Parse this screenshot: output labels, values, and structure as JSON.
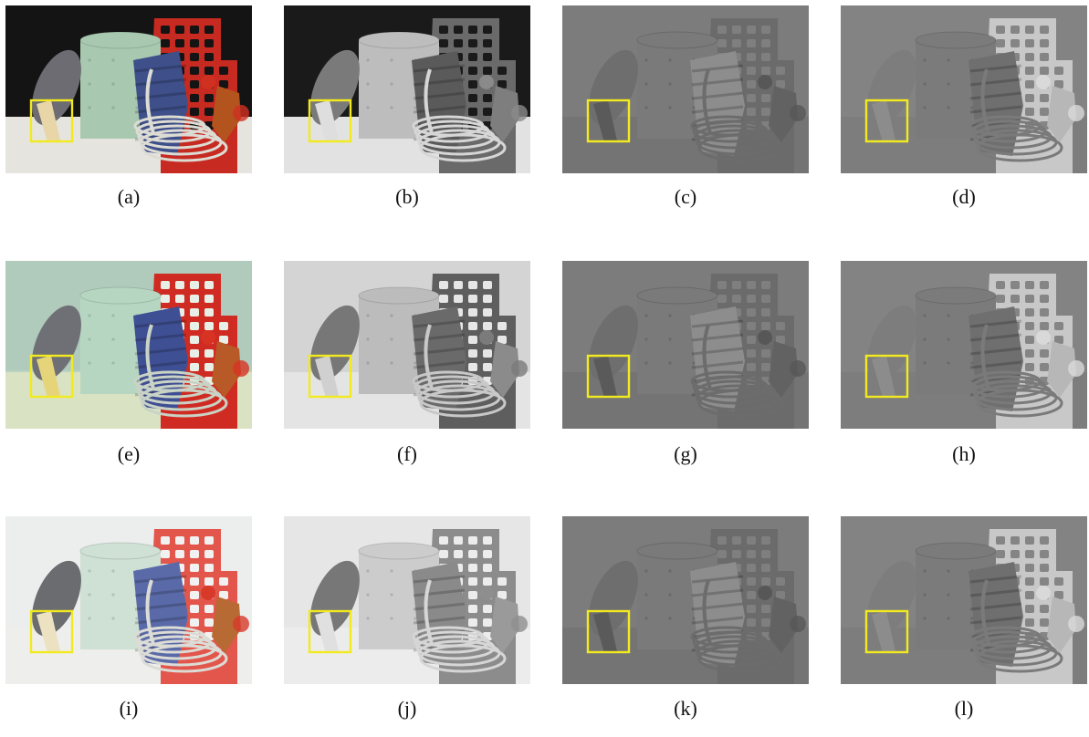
{
  "figure": {
    "panels": [
      {
        "id": "a",
        "caption": "(a)",
        "style": "color-dark"
      },
      {
        "id": "b",
        "caption": "(b)",
        "style": "gray-dark"
      },
      {
        "id": "c",
        "caption": "(c)",
        "style": "flat-a"
      },
      {
        "id": "d",
        "caption": "(d)",
        "style": "flat-b"
      },
      {
        "id": "e",
        "caption": "(e)",
        "style": "color-green"
      },
      {
        "id": "f",
        "caption": "(f)",
        "style": "gray-light"
      },
      {
        "id": "g",
        "caption": "(g)",
        "style": "flat-a"
      },
      {
        "id": "h",
        "caption": "(h)",
        "style": "flat-b"
      },
      {
        "id": "i",
        "caption": "(i)",
        "style": "color-white"
      },
      {
        "id": "j",
        "caption": "(j)",
        "style": "gray-pale"
      },
      {
        "id": "k",
        "caption": "(k)",
        "style": "flat-a"
      },
      {
        "id": "l",
        "caption": "(l)",
        "style": "flat-b"
      }
    ],
    "highlight_color": "#f2ea1f"
  }
}
